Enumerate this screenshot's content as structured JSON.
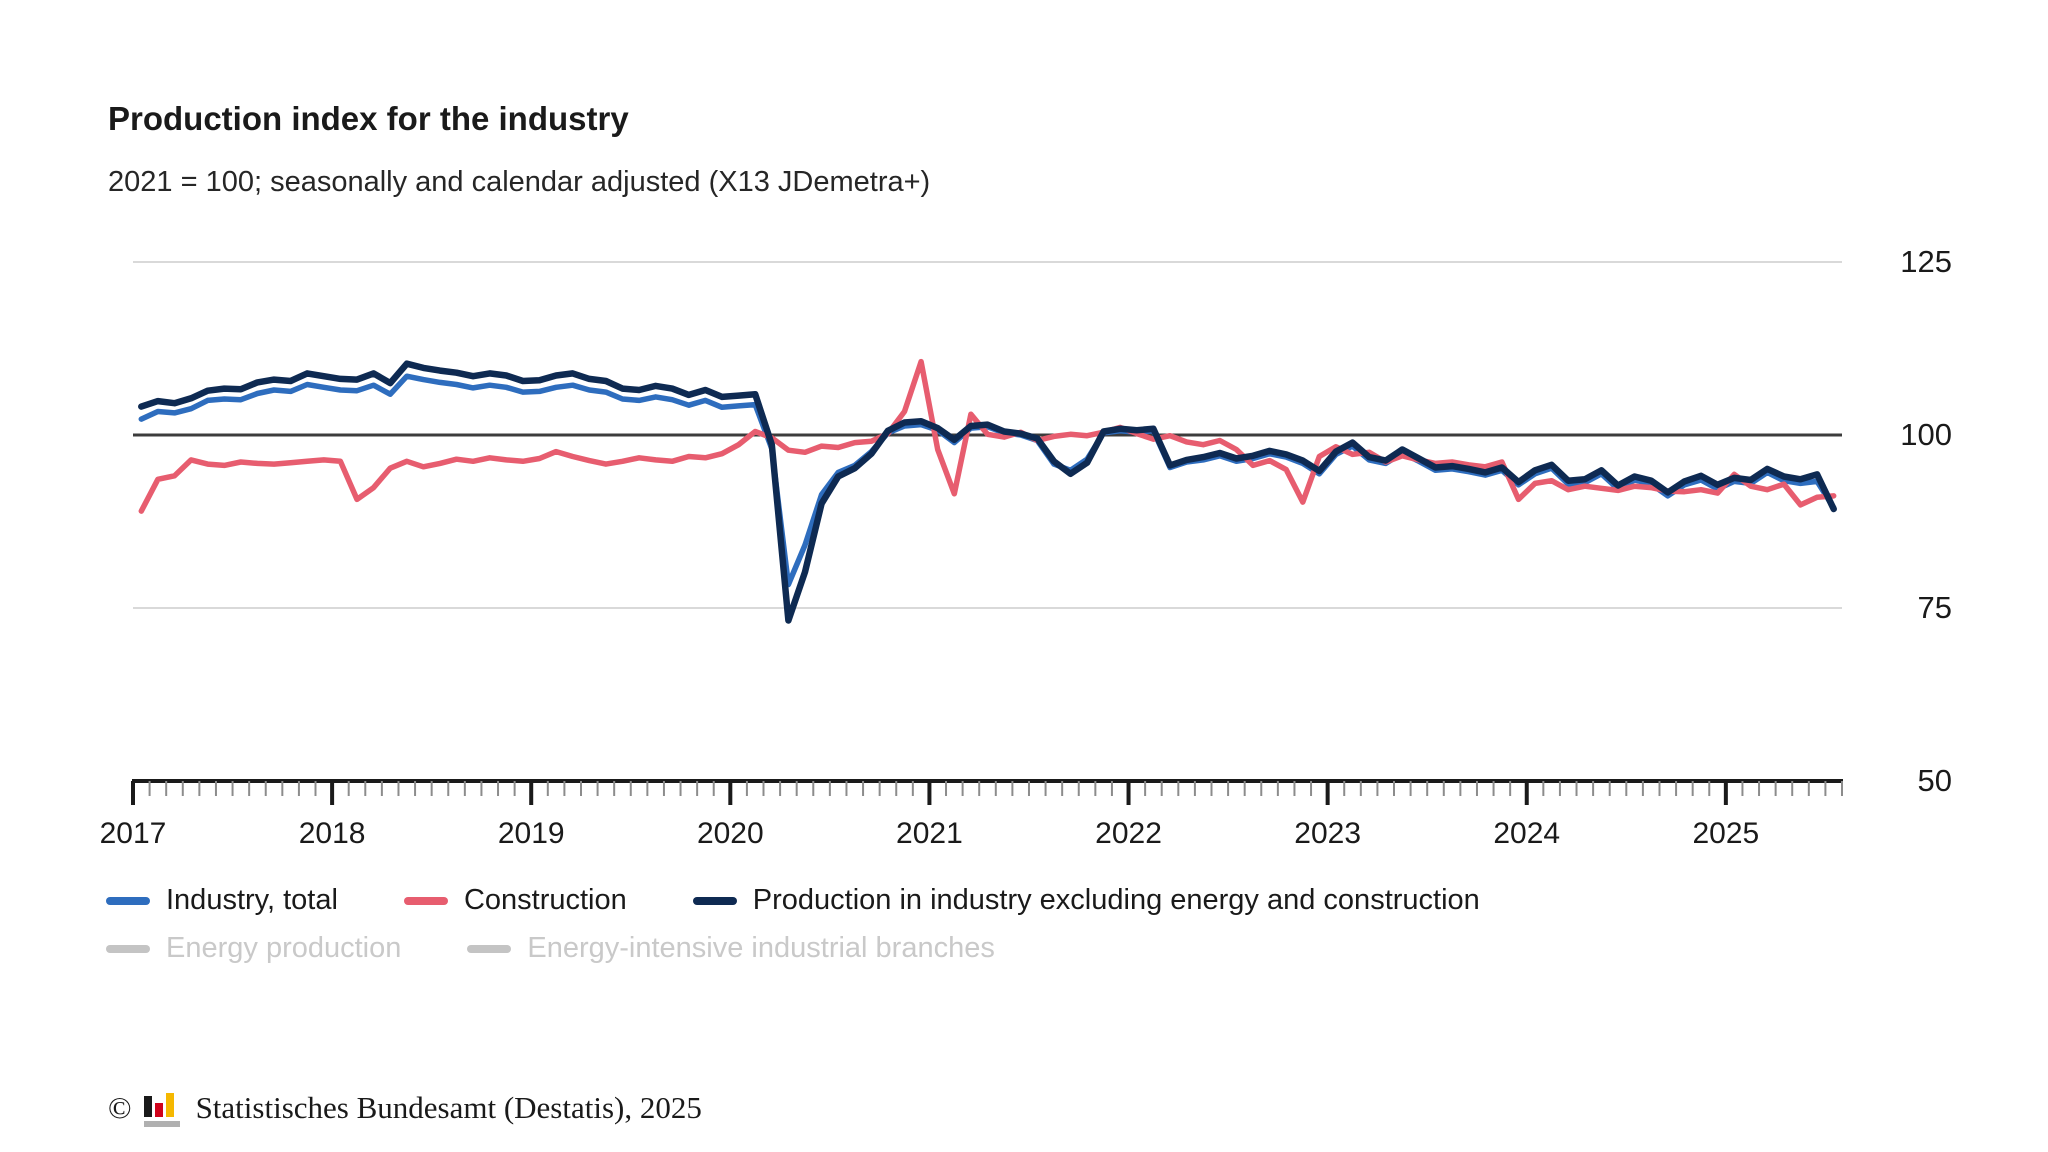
{
  "header": {
    "title": "Production index for the industry",
    "subtitle": "2021 = 100; seasonally and calendar adjusted (X13 JDemetra+)"
  },
  "chart_data": {
    "type": "line",
    "title": "Production index for the industry",
    "subtitle": "2021 = 100; seasonally and calendar adjusted (X13 JDemetra+)",
    "x_unit": "month",
    "x_start": "2017-01",
    "x_end": "2025-07",
    "x_tick_labels": [
      "2017",
      "2018",
      "2019",
      "2020",
      "2021",
      "2022",
      "2023",
      "2024",
      "2025"
    ],
    "ylim": [
      50,
      125
    ],
    "y_tick_labels": [
      125,
      100,
      75,
      50
    ],
    "reference_line_y": 100,
    "grid": "horizontal-light",
    "legend_position": "bottom",
    "series": [
      {
        "name": "Industry, total",
        "color": "#2e6dbe",
        "visible": true,
        "values": [
          102.3,
          103.4,
          103.2,
          103.8,
          105.0,
          105.2,
          105.1,
          106.0,
          106.5,
          106.3,
          107.3,
          106.9,
          106.5,
          106.4,
          107.2,
          105.9,
          108.5,
          108.0,
          107.6,
          107.3,
          106.8,
          107.2,
          106.9,
          106.2,
          106.3,
          106.9,
          107.2,
          106.5,
          106.2,
          105.2,
          105.0,
          105.5,
          105.1,
          104.3,
          105.0,
          104.0,
          104.2,
          104.4,
          98.0,
          78.4,
          84.1,
          91.4,
          94.6,
          95.6,
          97.6,
          100.3,
          101.3,
          101.5,
          100.7,
          98.9,
          101.0,
          101.2,
          100.3,
          100.0,
          99.2,
          95.8,
          94.9,
          96.5,
          100.3,
          100.6,
          100.4,
          100.6,
          95.3,
          96.1,
          96.4,
          97.0,
          96.2,
          96.6,
          97.3,
          96.8,
          95.9,
          94.4,
          97.2,
          98.4,
          96.4,
          95.9,
          97.4,
          96.2,
          94.9,
          95.1,
          94.7,
          94.2,
          94.9,
          92.8,
          94.4,
          95.2,
          92.9,
          93.1,
          94.4,
          92.2,
          93.5,
          92.9,
          91.2,
          92.8,
          93.5,
          92.2,
          93.3,
          93.0,
          94.6,
          93.4,
          93.0,
          93.3,
          89.5
        ]
      },
      {
        "name": "Construction",
        "color": "#e75d6f",
        "visible": true,
        "values": [
          89.0,
          93.6,
          94.1,
          96.4,
          95.8,
          95.6,
          96.1,
          95.9,
          95.8,
          96.0,
          96.2,
          96.4,
          96.2,
          90.7,
          92.4,
          95.2,
          96.2,
          95.4,
          95.9,
          96.5,
          96.2,
          96.7,
          96.4,
          96.2,
          96.6,
          97.6,
          96.9,
          96.3,
          95.8,
          96.2,
          96.7,
          96.4,
          96.2,
          96.9,
          96.7,
          97.3,
          98.6,
          100.5,
          99.6,
          97.8,
          97.5,
          98.4,
          98.2,
          98.9,
          99.1,
          100.2,
          103.4,
          110.6,
          97.9,
          91.5,
          103.0,
          100.1,
          99.7,
          100.4,
          99.2,
          99.8,
          100.1,
          99.9,
          100.4,
          101.1,
          100.2,
          99.4,
          99.9,
          99.0,
          98.6,
          99.2,
          97.9,
          95.6,
          96.3,
          95.0,
          90.3,
          96.9,
          98.3,
          97.2,
          97.5,
          96.1,
          97.0,
          96.4,
          95.9,
          96.1,
          95.7,
          95.4,
          96.1,
          90.7,
          93.0,
          93.4,
          92.1,
          92.6,
          92.3,
          92.0,
          92.6,
          92.4,
          91.9,
          91.8,
          92.1,
          91.6,
          94.3,
          92.6,
          92.1,
          92.9,
          89.9,
          91.0,
          91.2
        ]
      },
      {
        "name": "Production in industry excluding energy and construction",
        "color": "#0e2a52",
        "visible": true,
        "values": [
          104.1,
          104.9,
          104.6,
          105.3,
          106.4,
          106.7,
          106.6,
          107.6,
          108.0,
          107.8,
          108.9,
          108.5,
          108.1,
          108.0,
          108.9,
          107.5,
          110.3,
          109.7,
          109.3,
          109.0,
          108.5,
          108.9,
          108.6,
          107.8,
          107.9,
          108.6,
          108.9,
          108.1,
          107.8,
          106.7,
          106.5,
          107.1,
          106.7,
          105.8,
          106.5,
          105.5,
          105.7,
          105.9,
          98.6,
          73.2,
          80.2,
          90.1,
          94.0,
          95.2,
          97.3,
          100.6,
          101.8,
          102.0,
          101.0,
          99.3,
          101.3,
          101.5,
          100.5,
          100.2,
          99.5,
          96.2,
          94.4,
          96.0,
          100.5,
          100.9,
          100.7,
          100.9,
          95.6,
          96.4,
          96.8,
          97.4,
          96.6,
          97.0,
          97.7,
          97.2,
          96.3,
          94.8,
          97.6,
          98.9,
          96.8,
          96.3,
          97.9,
          96.6,
          95.3,
          95.5,
          95.1,
          94.6,
          95.3,
          93.2,
          94.9,
          95.7,
          93.4,
          93.6,
          94.9,
          92.7,
          94.0,
          93.4,
          91.7,
          93.3,
          94.1,
          92.8,
          93.8,
          93.5,
          95.1,
          94.0,
          93.6,
          94.3,
          89.3
        ]
      },
      {
        "name": "Energy production",
        "color": "#c4c4c4",
        "visible": false,
        "values": []
      },
      {
        "name": "Energy-intensive industrial branches",
        "color": "#c4c4c4",
        "visible": false,
        "values": []
      }
    ],
    "colors": {
      "grid_light": "#d9d9d9",
      "reference_line": "#3c3c3c",
      "axis": "#1a1a1a",
      "minor_tick": "#8c8c8c",
      "tick_label": "#1a1a1a",
      "disabled_legend": "#c9c9c9"
    }
  },
  "footer": {
    "copyright": "©",
    "source": "Statistisches Bundesamt (Destatis), 2025"
  }
}
